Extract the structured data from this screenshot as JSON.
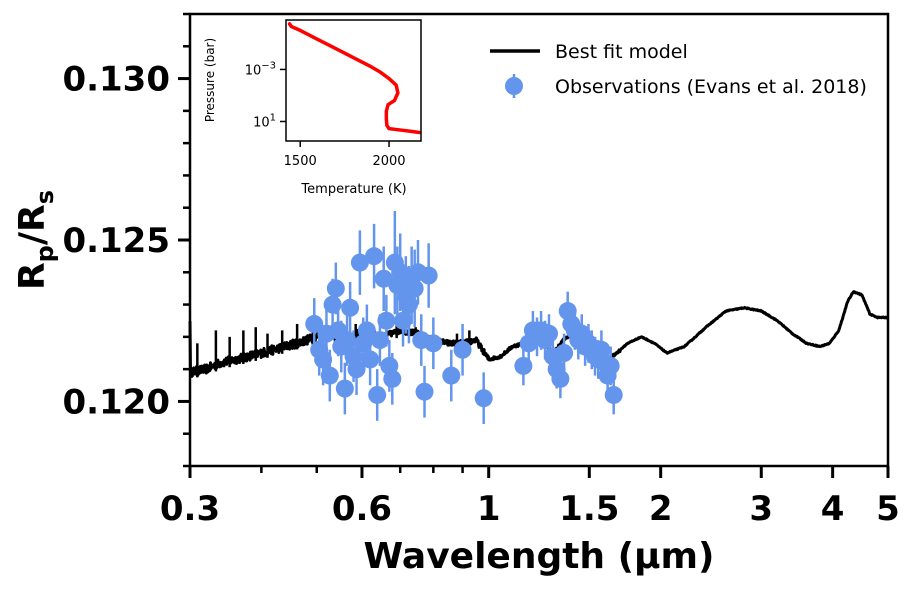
{
  "chart_data": {
    "type": "scatter",
    "xlabel": "Wavelength (μm)",
    "ylabel": "Rp/Rs",
    "xscale": "log",
    "xlim": [
      0.3,
      5.0
    ],
    "ylim": [
      0.118,
      0.132
    ],
    "x_ticks": [
      0.3,
      0.6,
      1,
      1.5,
      2,
      3,
      4,
      5
    ],
    "x_tick_labels": [
      "0.3",
      "0.6",
      "1",
      "1.5",
      "2",
      "3",
      "4",
      "5"
    ],
    "y_ticks": [
      0.12,
      0.125,
      0.13
    ],
    "y_tick_labels": [
      "0.120",
      "0.125",
      "0.130"
    ],
    "colors": {
      "model": "#000000",
      "observations": "#6495ED",
      "tp_profile": "#FF0000"
    },
    "legend": {
      "location": "top-right",
      "entries": [
        {
          "label": "Best fit model",
          "kind": "line",
          "color": "#000000"
        },
        {
          "label": "Observations (Evans et al. 2018)",
          "kind": "point",
          "color": "#6495ED"
        }
      ]
    },
    "model": {
      "name": "Best fit model",
      "anchors": [
        [
          0.3,
          0.1209
        ],
        [
          0.32,
          0.121
        ],
        [
          0.34,
          0.1212
        ],
        [
          0.36,
          0.1213
        ],
        [
          0.4,
          0.1215
        ],
        [
          0.44,
          0.1217
        ],
        [
          0.48,
          0.1219
        ],
        [
          0.52,
          0.1221
        ],
        [
          0.56,
          0.1219
        ],
        [
          0.6,
          0.1222
        ],
        [
          0.65,
          0.122
        ],
        [
          0.7,
          0.1222
        ],
        [
          0.75,
          0.1221
        ],
        [
          0.8,
          0.1219
        ],
        [
          0.85,
          0.1218
        ],
        [
          0.9,
          0.1218
        ],
        [
          0.95,
          0.1219
        ],
        [
          1.0,
          0.1213
        ],
        [
          1.05,
          0.1214
        ],
        [
          1.1,
          0.1217
        ],
        [
          1.15,
          0.1218
        ],
        [
          1.2,
          0.1219
        ],
        [
          1.25,
          0.1218
        ],
        [
          1.3,
          0.1215
        ],
        [
          1.35,
          0.1219
        ],
        [
          1.4,
          0.1221
        ],
        [
          1.45,
          0.122
        ],
        [
          1.5,
          0.1216
        ],
        [
          1.55,
          0.1214
        ],
        [
          1.6,
          0.1213
        ],
        [
          1.65,
          0.1214
        ],
        [
          1.75,
          0.1218
        ],
        [
          1.85,
          0.122
        ],
        [
          1.95,
          0.1218
        ],
        [
          2.05,
          0.1215
        ],
        [
          2.2,
          0.1217
        ],
        [
          2.4,
          0.1223
        ],
        [
          2.6,
          0.1228
        ],
        [
          2.8,
          0.1229
        ],
        [
          3.0,
          0.1228
        ],
        [
          3.2,
          0.1225
        ],
        [
          3.4,
          0.1221
        ],
        [
          3.6,
          0.1218
        ],
        [
          3.8,
          0.1217
        ],
        [
          3.95,
          0.1218
        ],
        [
          4.1,
          0.1222
        ],
        [
          4.25,
          0.1231
        ],
        [
          4.35,
          0.1234
        ],
        [
          4.5,
          0.1233
        ],
        [
          4.65,
          0.1227
        ],
        [
          4.8,
          0.1226
        ],
        [
          5.0,
          0.1226
        ]
      ],
      "spikes": [
        [
          0.309,
          0.1218
        ],
        [
          0.333,
          0.1222
        ],
        [
          0.352,
          0.122
        ],
        [
          0.372,
          0.1222
        ],
        [
          0.391,
          0.1223
        ],
        [
          0.41,
          0.1221
        ],
        [
          0.435,
          0.1222
        ],
        [
          0.462,
          0.1224
        ],
        [
          0.492,
          0.1223
        ],
        [
          0.525,
          0.1222
        ],
        [
          0.585,
          0.1224
        ],
        [
          0.69,
          0.1225
        ],
        [
          0.745,
          0.1223
        ],
        [
          0.88,
          0.1221
        ],
        [
          0.925,
          0.1222
        ]
      ]
    },
    "observations": [
      {
        "x": 0.495,
        "y": 0.1224,
        "err": 0.0008
      },
      {
        "x": 0.505,
        "y": 0.1216,
        "err": 0.0008
      },
      {
        "x": 0.513,
        "y": 0.1213,
        "err": 0.0008
      },
      {
        "x": 0.52,
        "y": 0.1221,
        "err": 0.0008
      },
      {
        "x": 0.527,
        "y": 0.1208,
        "err": 0.0008
      },
      {
        "x": 0.533,
        "y": 0.123,
        "err": 0.0008
      },
      {
        "x": 0.54,
        "y": 0.1235,
        "err": 0.0008
      },
      {
        "x": 0.545,
        "y": 0.1222,
        "err": 0.0008
      },
      {
        "x": 0.552,
        "y": 0.1217,
        "err": 0.0008
      },
      {
        "x": 0.56,
        "y": 0.1204,
        "err": 0.0008
      },
      {
        "x": 0.565,
        "y": 0.1219,
        "err": 0.0008
      },
      {
        "x": 0.572,
        "y": 0.1229,
        "err": 0.0008
      },
      {
        "x": 0.58,
        "y": 0.1214,
        "err": 0.0008
      },
      {
        "x": 0.587,
        "y": 0.121,
        "err": 0.0008
      },
      {
        "x": 0.595,
        "y": 0.1243,
        "err": 0.001
      },
      {
        "x": 0.603,
        "y": 0.1218,
        "err": 0.0008
      },
      {
        "x": 0.612,
        "y": 0.1222,
        "err": 0.0008
      },
      {
        "x": 0.62,
        "y": 0.1213,
        "err": 0.0008
      },
      {
        "x": 0.63,
        "y": 0.1245,
        "err": 0.001
      },
      {
        "x": 0.638,
        "y": 0.1202,
        "err": 0.0008
      },
      {
        "x": 0.645,
        "y": 0.1219,
        "err": 0.0008
      },
      {
        "x": 0.655,
        "y": 0.1238,
        "err": 0.001
      },
      {
        "x": 0.662,
        "y": 0.1225,
        "err": 0.0008
      },
      {
        "x": 0.67,
        "y": 0.1211,
        "err": 0.0008
      },
      {
        "x": 0.678,
        "y": 0.1207,
        "err": 0.0008
      },
      {
        "x": 0.685,
        "y": 0.1243,
        "err": 0.0016
      },
      {
        "x": 0.692,
        "y": 0.1236,
        "err": 0.0012
      },
      {
        "x": 0.7,
        "y": 0.124,
        "err": 0.0012
      },
      {
        "x": 0.708,
        "y": 0.1225,
        "err": 0.0008
      },
      {
        "x": 0.716,
        "y": 0.1233,
        "err": 0.0012
      },
      {
        "x": 0.725,
        "y": 0.123,
        "err": 0.0012
      },
      {
        "x": 0.733,
        "y": 0.1236,
        "err": 0.0012
      },
      {
        "x": 0.742,
        "y": 0.1235,
        "err": 0.0012
      },
      {
        "x": 0.752,
        "y": 0.124,
        "err": 0.001
      },
      {
        "x": 0.762,
        "y": 0.1219,
        "err": 0.0008
      },
      {
        "x": 0.772,
        "y": 0.1203,
        "err": 0.0008
      },
      {
        "x": 0.785,
        "y": 0.1239,
        "err": 0.001
      },
      {
        "x": 0.8,
        "y": 0.1218,
        "err": 0.0008
      },
      {
        "x": 0.86,
        "y": 0.1208,
        "err": 0.0008
      },
      {
        "x": 0.9,
        "y": 0.1216,
        "err": 0.0008
      },
      {
        "x": 0.98,
        "y": 0.1201,
        "err": 0.0008
      },
      {
        "x": 1.15,
        "y": 0.1211,
        "err": 0.0006
      },
      {
        "x": 1.175,
        "y": 0.1218,
        "err": 0.0006
      },
      {
        "x": 1.195,
        "y": 0.1222,
        "err": 0.0006
      },
      {
        "x": 1.215,
        "y": 0.122,
        "err": 0.0006
      },
      {
        "x": 1.235,
        "y": 0.1222,
        "err": 0.0006
      },
      {
        "x": 1.255,
        "y": 0.1219,
        "err": 0.0006
      },
      {
        "x": 1.275,
        "y": 0.1221,
        "err": 0.0006
      },
      {
        "x": 1.295,
        "y": 0.1214,
        "err": 0.0006
      },
      {
        "x": 1.315,
        "y": 0.121,
        "err": 0.0006
      },
      {
        "x": 1.335,
        "y": 0.1207,
        "err": 0.0006
      },
      {
        "x": 1.355,
        "y": 0.1215,
        "err": 0.0006
      },
      {
        "x": 1.375,
        "y": 0.1228,
        "err": 0.0006
      },
      {
        "x": 1.395,
        "y": 0.1224,
        "err": 0.0006
      },
      {
        "x": 1.415,
        "y": 0.1222,
        "err": 0.0006
      },
      {
        "x": 1.435,
        "y": 0.1219,
        "err": 0.0006
      },
      {
        "x": 1.455,
        "y": 0.1221,
        "err": 0.0006
      },
      {
        "x": 1.475,
        "y": 0.1217,
        "err": 0.0006
      },
      {
        "x": 1.495,
        "y": 0.1218,
        "err": 0.0006
      },
      {
        "x": 1.515,
        "y": 0.1216,
        "err": 0.0006
      },
      {
        "x": 1.535,
        "y": 0.1214,
        "err": 0.0006
      },
      {
        "x": 1.555,
        "y": 0.1213,
        "err": 0.0006
      },
      {
        "x": 1.575,
        "y": 0.1216,
        "err": 0.0006
      },
      {
        "x": 1.595,
        "y": 0.1212,
        "err": 0.0006
      },
      {
        "x": 1.615,
        "y": 0.1208,
        "err": 0.0006
      },
      {
        "x": 1.635,
        "y": 0.1211,
        "err": 0.0006
      },
      {
        "x": 1.655,
        "y": 0.1202,
        "err": 0.0006
      }
    ],
    "inset": {
      "type": "line",
      "xlabel": "Temperature (K)",
      "ylabel": "Pressure (bar)",
      "yscale": "log",
      "yinverted": true,
      "xlim": [
        1420,
        2180
      ],
      "ylim_log10": [
        -6.8,
        2.5
      ],
      "x_ticks": [
        1500,
        2000
      ],
      "x_tick_labels": [
        "1500",
        "2000"
      ],
      "y_ticks_log10": [
        -3,
        1
      ],
      "y_tick_labels": [
        "10−3",
        "101"
      ],
      "profile": [
        [
          1440,
          -6.5
        ],
        [
          1450,
          -6.3
        ],
        [
          1500,
          -6.0
        ],
        [
          1600,
          -5.3
        ],
        [
          1700,
          -4.6
        ],
        [
          1800,
          -3.9
        ],
        [
          1900,
          -3.2
        ],
        [
          1950,
          -2.8
        ],
        [
          2000,
          -2.3
        ],
        [
          2040,
          -1.8
        ],
        [
          2050,
          -1.2
        ],
        [
          2030,
          -0.6
        ],
        [
          1995,
          -0.3
        ],
        [
          1985,
          0.2
        ],
        [
          1985,
          0.8
        ],
        [
          1988,
          1.3
        ],
        [
          2000,
          1.55
        ],
        [
          2060,
          1.65
        ],
        [
          2120,
          1.75
        ],
        [
          2170,
          1.85
        ]
      ]
    }
  }
}
